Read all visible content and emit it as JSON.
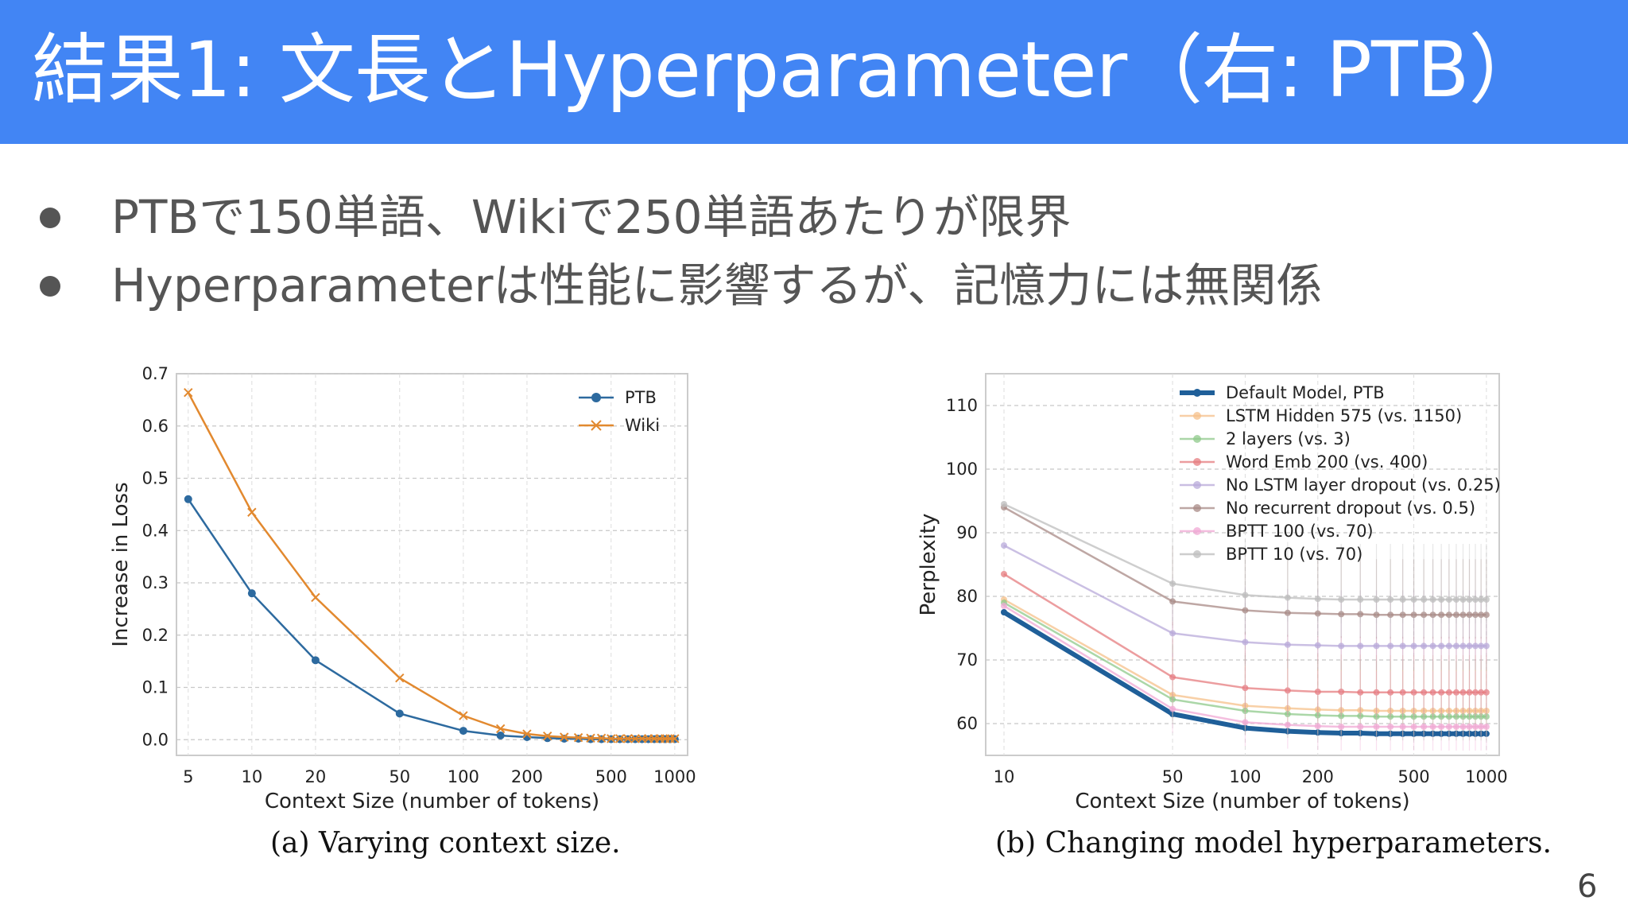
{
  "slide": {
    "title": "結果1: 文長とHyperparameter（右: PTB）",
    "bullets": [
      "PTBで150単語、Wikiで250単語あたりが限界",
      "Hyperparameterは性能に影響するが、記憶力には無関係"
    ],
    "page_number": "6"
  },
  "chart_data": [
    {
      "type": "line",
      "caption": "(a) Varying context size.",
      "xlabel": "Context Size (number of tokens)",
      "ylabel": "Increase in Loss",
      "x_scale": "log",
      "xlim": [
        4.4,
        1150
      ],
      "ylim": [
        -0.03,
        0.7
      ],
      "xticks": [
        5,
        10,
        20,
        50,
        100,
        200,
        500,
        1000
      ],
      "xtick_labels": [
        "5",
        "10",
        "20",
        "50",
        "100",
        "200",
        "500",
        "1000"
      ],
      "yticks": [
        0.0,
        0.1,
        0.2,
        0.3,
        0.4,
        0.5,
        0.6,
        0.7
      ],
      "ytick_labels": [
        "0.0",
        "0.1",
        "0.2",
        "0.3",
        "0.4",
        "0.5",
        "0.6",
        "0.7"
      ],
      "grid": true,
      "legend_position": "top-right",
      "x": [
        5,
        10,
        20,
        50,
        100,
        150,
        200,
        250,
        300,
        350,
        400,
        450,
        500,
        550,
        600,
        650,
        700,
        750,
        800,
        850,
        900,
        950,
        1000
      ],
      "series": [
        {
          "name": "PTB",
          "color": "#2d6a9f",
          "marker": "circle",
          "values": [
            0.46,
            0.28,
            0.152,
            0.05,
            0.017,
            0.008,
            0.005,
            0.003,
            0.002,
            0.002,
            0.001,
            0.001,
            0.001,
            0.001,
            0.001,
            0.001,
            0.001,
            0.001,
            0.001,
            0.001,
            0.001,
            0.001,
            0.001
          ]
        },
        {
          "name": "Wiki",
          "color": "#e2892f",
          "marker": "x",
          "values": [
            0.664,
            0.435,
            0.272,
            0.118,
            0.046,
            0.021,
            0.011,
            0.007,
            0.005,
            0.004,
            0.003,
            0.003,
            0.002,
            0.002,
            0.002,
            0.002,
            0.002,
            0.002,
            0.002,
            0.002,
            0.002,
            0.002,
            0.002
          ]
        }
      ]
    },
    {
      "type": "line",
      "caption": "(b) Changing model hyperparameters.",
      "xlabel": "Context Size (number of tokens)",
      "ylabel": "Perplexity",
      "x_scale": "log",
      "xlim": [
        8.4,
        1130
      ],
      "ylim": [
        55,
        115
      ],
      "xticks": [
        10,
        50,
        100,
        200,
        500,
        1000
      ],
      "xtick_labels": [
        "10",
        "50",
        "100",
        "200",
        "500",
        "1000"
      ],
      "yticks": [
        60,
        70,
        80,
        90,
        100,
        110
      ],
      "ytick_labels": [
        "60",
        "70",
        "80",
        "90",
        "100",
        "110"
      ],
      "grid": true,
      "legend_position": "top-right",
      "x": [
        10,
        50,
        100,
        150,
        200,
        250,
        300,
        350,
        400,
        450,
        500,
        550,
        600,
        650,
        700,
        750,
        800,
        850,
        900,
        950,
        1000
      ],
      "series": [
        {
          "name": "Default Model, PTB",
          "color": "#1f5f99",
          "values": [
            77.5,
            61.5,
            59.3,
            58.8,
            58.6,
            58.5,
            58.5,
            58.4,
            58.4,
            58.4,
            58.4,
            58.4,
            58.4,
            58.4,
            58.4,
            58.4,
            58.4,
            58.4,
            58.4,
            58.4,
            58.4
          ]
        },
        {
          "name": "LSTM Hidden 575 (vs. 1150)",
          "color": "#f6c08a",
          "values": [
            79.5,
            64.5,
            62.8,
            62.4,
            62.2,
            62.1,
            62.1,
            62.0,
            62.0,
            62.0,
            62.0,
            62.0,
            62.0,
            62.0,
            62.0,
            62.0,
            62.0,
            62.0,
            62.0,
            62.0,
            62.0
          ]
        },
        {
          "name": "2 layers (vs. 3)",
          "color": "#8fc98b",
          "values": [
            79.0,
            63.8,
            62.0,
            61.5,
            61.3,
            61.2,
            61.2,
            61.1,
            61.1,
            61.1,
            61.1,
            61.1,
            61.1,
            61.1,
            61.1,
            61.1,
            61.1,
            61.1,
            61.1,
            61.1,
            61.1
          ]
        },
        {
          "name": "Word Emb 200 (vs. 400)",
          "color": "#e57c7f",
          "values": [
            83.5,
            67.3,
            65.6,
            65.2,
            65.0,
            65.0,
            64.9,
            64.9,
            64.9,
            64.9,
            64.9,
            64.9,
            64.9,
            64.9,
            64.9,
            64.9,
            64.9,
            64.9,
            64.9,
            64.9,
            64.9
          ]
        },
        {
          "name": "No LSTM layer dropout (vs. 0.25)",
          "color": "#b8a9d9",
          "values": [
            88.0,
            74.2,
            72.8,
            72.4,
            72.3,
            72.2,
            72.2,
            72.2,
            72.2,
            72.2,
            72.2,
            72.2,
            72.2,
            72.2,
            72.2,
            72.2,
            72.2,
            72.2,
            72.2,
            72.2,
            72.2
          ]
        },
        {
          "name": "No recurrent dropout (vs. 0.5)",
          "color": "#a88a86",
          "values": [
            94.0,
            79.2,
            77.8,
            77.4,
            77.3,
            77.2,
            77.2,
            77.1,
            77.1,
            77.1,
            77.1,
            77.1,
            77.1,
            77.1,
            77.1,
            77.1,
            77.1,
            77.1,
            77.1,
            77.1,
            77.1
          ]
        },
        {
          "name": "BPTT 100 (vs. 70)",
          "color": "#f0a8d4",
          "values": [
            78.5,
            62.3,
            60.2,
            59.8,
            59.6,
            59.5,
            59.5,
            59.5,
            59.5,
            59.5,
            59.5,
            59.5,
            59.5,
            59.5,
            59.5,
            59.5,
            59.5,
            59.5,
            59.5,
            59.5,
            59.5
          ]
        },
        {
          "name": "BPTT 10 (vs. 70)",
          "color": "#bdbdbd",
          "values": [
            94.5,
            82.0,
            80.2,
            79.8,
            79.6,
            79.5,
            79.5,
            79.5,
            79.5,
            79.5,
            79.5,
            79.5,
            79.5,
            79.5,
            79.5,
            79.5,
            79.5,
            79.5,
            79.5,
            79.5,
            79.5
          ]
        }
      ]
    }
  ]
}
